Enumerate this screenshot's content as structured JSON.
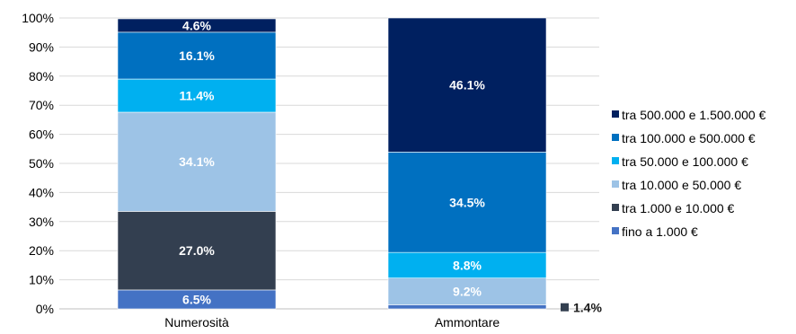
{
  "chart_data": {
    "type": "bar",
    "stacked": true,
    "categories": [
      "Numerosità",
      "Ammontare"
    ],
    "series": [
      {
        "name": "fino a 1.000 €",
        "values": [
          6.5,
          1.4
        ],
        "color": "#4472c4"
      },
      {
        "name": "tra 1.000 e 10.000 €",
        "values": [
          27.0,
          0.0
        ],
        "color": "#333f50"
      },
      {
        "name": "tra 10.000 e 50.000 €",
        "values": [
          34.1,
          9.2
        ],
        "color": "#9dc3e6"
      },
      {
        "name": "tra 50.000 e 100.000 €",
        "values": [
          11.4,
          8.8
        ],
        "color": "#00b0f0"
      },
      {
        "name": "tra 100.000 e 500.000 €",
        "values": [
          16.1,
          34.5
        ],
        "color": "#0070c0"
      },
      {
        "name": "tra 500.000 e 1.500.000 €",
        "values": [
          4.6,
          46.1
        ],
        "color": "#002060"
      }
    ],
    "data_labels": [
      [
        "6.5%",
        "1.4%"
      ],
      [
        "27.0%",
        ""
      ],
      [
        "34.1%",
        "9.2%"
      ],
      [
        "11.4%",
        "8.8%"
      ],
      [
        "16.1%",
        "34.5%"
      ],
      [
        "4.6%",
        "46.1%"
      ]
    ],
    "y_ticks": [
      "0%",
      "10%",
      "20%",
      "30%",
      "40%",
      "50%",
      "60%",
      "70%",
      "80%",
      "90%",
      "100%"
    ],
    "ylim": [
      0,
      100
    ],
    "grid": true,
    "legend_position": "right",
    "title": "",
    "xlabel": "",
    "ylabel": ""
  }
}
